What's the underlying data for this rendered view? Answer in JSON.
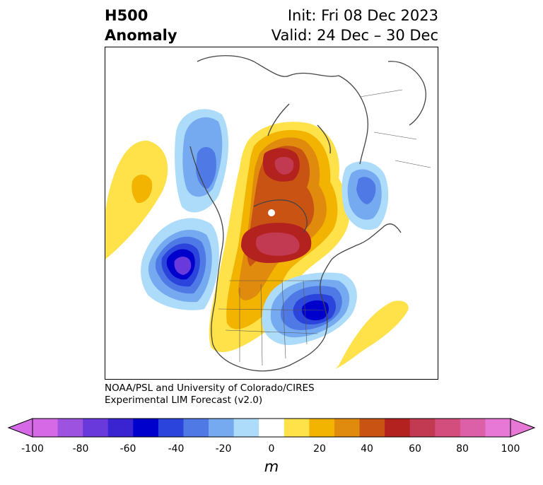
{
  "title": {
    "left_line1": "H500",
    "left_line2": "Anomaly",
    "right_line1": "Init: Fri 08 Dec 2023",
    "right_line2": "Valid: 24 Dec – 30 Dec"
  },
  "credit": {
    "line1": "NOAA/PSL and University of Colorado/CIRES",
    "line2": "Experimental LIM Forecast (v2.0)"
  },
  "colorbar": {
    "unit": "m",
    "ticks": [
      "-100",
      "-80",
      "-60",
      "-40",
      "-20",
      "0",
      "20",
      "40",
      "60",
      "80",
      "100"
    ],
    "levels": [
      -100,
      -90,
      -80,
      -70,
      -60,
      -50,
      -40,
      -30,
      -20,
      -10,
      10,
      20,
      30,
      40,
      50,
      60,
      70,
      80,
      90,
      100
    ],
    "colors": [
      "#d569e6",
      "#9d52e0",
      "#6a39dc",
      "#3a24d2",
      "#0000cc",
      "#2a44dc",
      "#4f7ae6",
      "#75aaf0",
      "#addcfa",
      "#ffffff",
      "#ffe14a",
      "#f2b400",
      "#e08a0e",
      "#c95312",
      "#b3221f",
      "#c23a52",
      "#d34d7d",
      "#db60a8",
      "#e878d6"
    ],
    "under_color": "#d569e6",
    "over_color": "#e878d6"
  }
}
